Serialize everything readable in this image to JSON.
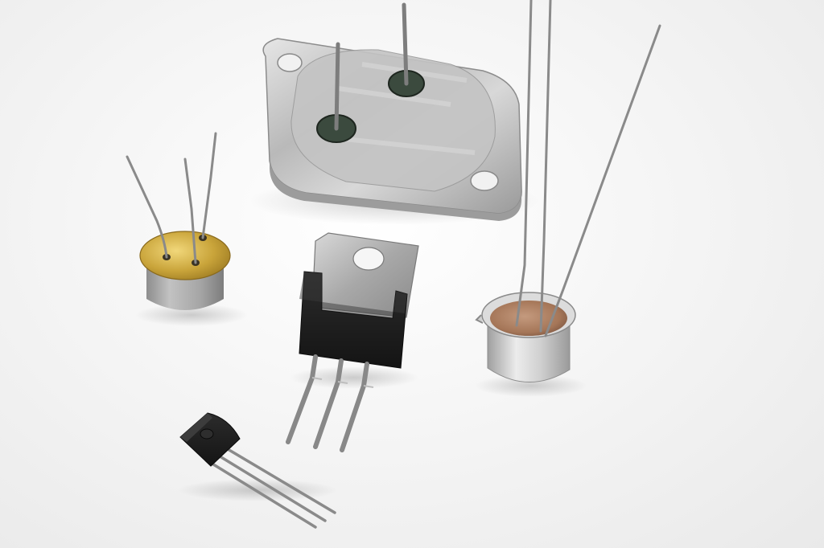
{
  "photo": {
    "subject": "transistor-packages",
    "colors": {
      "background": "#f3f3f3",
      "metal_can_silver": "#c9c9c9",
      "gold_cap": "#c9a43a",
      "plastic_black": "#1d1d1d",
      "copper_fill": "#a97a5d",
      "lead_wire": "#8a8a8a"
    },
    "components": [
      {
        "name": "to3-power-transistor",
        "leads": 2
      },
      {
        "name": "to39-metal-can-transistor",
        "leads": 3
      },
      {
        "name": "to220-transistor",
        "leads": 3
      },
      {
        "name": "to92-transistor",
        "leads": 3
      },
      {
        "name": "to18-metal-can-transistor",
        "leads": 3
      }
    ]
  }
}
